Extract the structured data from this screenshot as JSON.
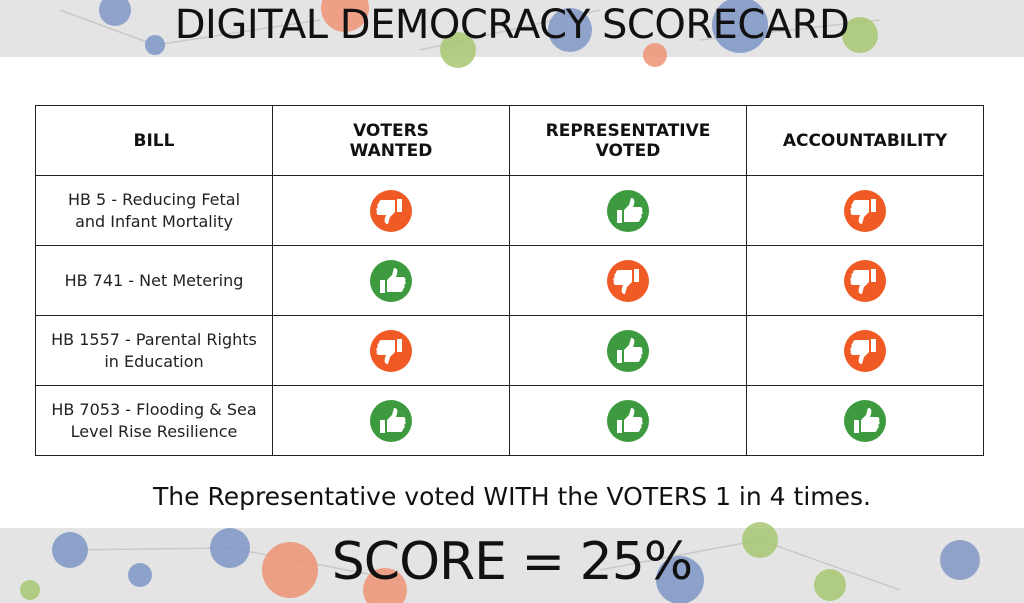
{
  "header": {
    "title": "DIGITAL DEMOCRACY SCORECARD"
  },
  "table": {
    "columns": [
      [
        "BILL"
      ],
      [
        "VOTERS",
        "WANTED"
      ],
      [
        "REPRESENTATIVE",
        "VOTED"
      ],
      [
        "ACCOUNTABILITY"
      ]
    ],
    "rows": [
      {
        "bill": [
          "HB 5 - Reducing Fetal",
          "and Infant Mortality"
        ],
        "votes": [
          "down",
          "up",
          "down"
        ]
      },
      {
        "bill": [
          "HB 741 - Net Metering"
        ],
        "votes": [
          "up",
          "down",
          "down"
        ]
      },
      {
        "bill": [
          "HB 1557 - Parental Rights",
          "in Education"
        ],
        "votes": [
          "down",
          "up",
          "down"
        ]
      },
      {
        "bill": [
          "HB 7053 - Flooding & Sea",
          "Level Rise Resilience"
        ],
        "votes": [
          "up",
          "up",
          "up"
        ]
      }
    ]
  },
  "summary": "The Representative voted WITH the VOTERS 1 in 4 times.",
  "score": "SCORE = 25%"
}
